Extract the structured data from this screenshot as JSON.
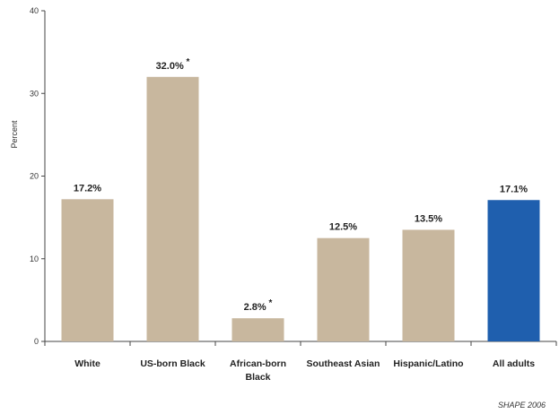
{
  "chart_data": {
    "type": "bar",
    "ylabel": "Percent",
    "ylim": [
      0,
      40
    ],
    "yticks": [
      "0",
      "10",
      "20",
      "30",
      "40"
    ],
    "categories": [
      [
        "White"
      ],
      [
        "US-born Black"
      ],
      [
        "African-born",
        "Black"
      ],
      [
        "Southeast Asian"
      ],
      [
        "Hispanic/Latino"
      ],
      [
        "All adults"
      ]
    ],
    "values": [
      17.2,
      32.0,
      2.8,
      12.5,
      13.5,
      17.1
    ],
    "data_labels": [
      "17.2%",
      "32.0%",
      "2.8%",
      "12.5%",
      "13.5%",
      "17.1%"
    ],
    "significance_marks": [
      "",
      "*",
      "*",
      "",
      "",
      ""
    ],
    "bar_colors": [
      "#c8b79e",
      "#c8b79e",
      "#c8b79e",
      "#c8b79e",
      "#c8b79e",
      "#1f5fae"
    ],
    "grid": false,
    "legend": "none"
  },
  "source_note": "SHAPE 2006"
}
